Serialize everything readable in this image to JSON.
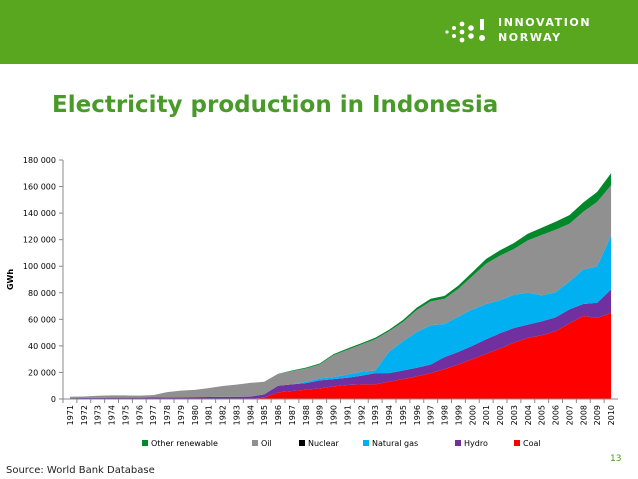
{
  "header": {
    "logo_line1": "INNOVATION",
    "logo_line2": "NORWAY",
    "brand_color": "#58a71f"
  },
  "slide": {
    "title": "Electricity production in Indonesia",
    "source": "Source: World Bank Database",
    "page_number": "13"
  },
  "chart_data": {
    "type": "area",
    "stacked": true,
    "title": "",
    "xlabel": "",
    "ylabel": "GWh",
    "ylim": [
      0,
      180000
    ],
    "yticks": [
      0,
      20000,
      40000,
      60000,
      80000,
      100000,
      120000,
      140000,
      160000,
      180000
    ],
    "ytick_labels": [
      "0",
      "20 000",
      "40 000",
      "60 000",
      "80 000",
      "100 000",
      "120 000",
      "140 000",
      "160 000",
      "180 000"
    ],
    "grid": false,
    "legend_position": "bottom",
    "x": [
      "1971",
      "1972",
      "1973",
      "1974",
      "1975",
      "1976",
      "1977",
      "1978",
      "1979",
      "1980",
      "1981",
      "1982",
      "1983",
      "1984",
      "1985",
      "1986",
      "1987",
      "1988",
      "1989",
      "1990",
      "1991",
      "1992",
      "1993",
      "1994",
      "1995",
      "1996",
      "1997",
      "1998",
      "1999",
      "2000",
      "2001",
      "2002",
      "2003",
      "2004",
      "2005",
      "2006",
      "2007",
      "2008",
      "2009",
      "2010"
    ],
    "series": [
      {
        "name": "Coal",
        "color": "#ff0000",
        "values": [
          0,
          0,
          0,
          0,
          0,
          0,
          0,
          0,
          0,
          0,
          0,
          0,
          0,
          0,
          1000,
          5000,
          6000,
          7000,
          8000,
          9500,
          10500,
          11000,
          11000,
          13000,
          15000,
          17000,
          19500,
          22500,
          26000,
          30000,
          34000,
          38000,
          42500,
          46000,
          48000,
          51000,
          57000,
          62500,
          61000,
          65000
        ]
      },
      {
        "name": "Hydro",
        "color": "#7030a0",
        "values": [
          700,
          800,
          900,
          1000,
          1000,
          1000,
          1100,
          1200,
          1300,
          1400,
          1500,
          1600,
          1700,
          1800,
          2500,
          5000,
          5000,
          5000,
          6000,
          5500,
          5500,
          6500,
          8500,
          6500,
          6500,
          6500,
          6500,
          9000,
          9500,
          10000,
          11000,
          11500,
          11000,
          10000,
          10500,
          10500,
          10500,
          9000,
          11500,
          17500
        ]
      },
      {
        "name": "Natural gas",
        "color": "#00b0f0",
        "values": [
          0,
          0,
          0,
          0,
          0,
          0,
          0,
          0,
          0,
          0,
          0,
          0,
          0,
          0,
          0,
          0,
          0,
          1000,
          1500,
          1500,
          2500,
          3000,
          2000,
          16000,
          22000,
          27000,
          29500,
          25000,
          26500,
          27500,
          26500,
          25000,
          25000,
          24000,
          19500,
          19000,
          21000,
          26000,
          27500,
          40500
        ]
      },
      {
        "name": "Nuclear",
        "color": "#000000",
        "values": [
          0,
          0,
          0,
          0,
          0,
          0,
          0,
          0,
          0,
          0,
          0,
          0,
          0,
          0,
          0,
          0,
          0,
          0,
          0,
          0,
          0,
          0,
          0,
          0,
          0,
          0,
          0,
          0,
          0,
          0,
          0,
          0,
          0,
          0,
          0,
          0,
          0,
          0,
          0,
          0
        ]
      },
      {
        "name": "Oil",
        "color": "#909090",
        "values": [
          1000,
          1100,
          1500,
          1700,
          1700,
          1500,
          1800,
          4000,
          5000,
          5500,
          6700,
          8200,
          9100,
          10300,
          9500,
          9000,
          10000,
          10000,
          10500,
          16500,
          18500,
          20500,
          23500,
          15500,
          14500,
          16500,
          18000,
          19000,
          21000,
          25000,
          30500,
          33500,
          34500,
          39500,
          45500,
          47000,
          43500,
          43500,
          48500,
          38000
        ]
      },
      {
        "name": "Other renewable",
        "color": "#00882b",
        "values": [
          0,
          0,
          0,
          0,
          0,
          0,
          0,
          0,
          0,
          0,
          0,
          0,
          0,
          0,
          0,
          0,
          500,
          600,
          700,
          800,
          1000,
          1000,
          1100,
          1200,
          1500,
          1800,
          2000,
          2200,
          2500,
          3000,
          3500,
          4000,
          4500,
          5000,
          5500,
          6000,
          6500,
          7000,
          7500,
          9000
        ]
      }
    ],
    "legend_order": [
      "Other renewable",
      "Oil",
      "Nuclear",
      "Natural gas",
      "Hydro",
      "Coal"
    ]
  }
}
